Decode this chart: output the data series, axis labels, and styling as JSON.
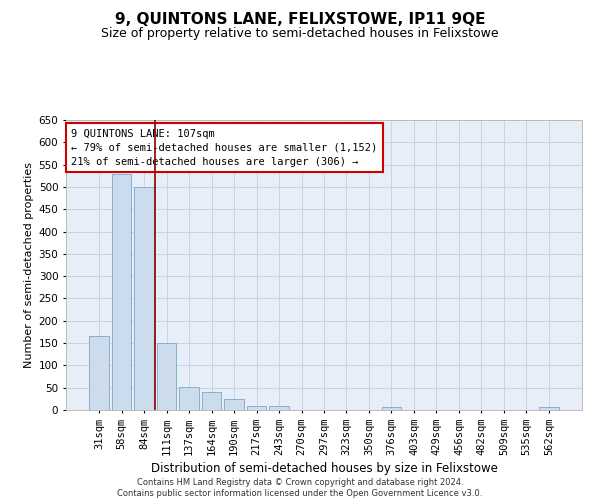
{
  "title": "9, QUINTONS LANE, FELIXSTOWE, IP11 9QE",
  "subtitle": "Size of property relative to semi-detached houses in Felixstowe",
  "xlabel": "Distribution of semi-detached houses by size in Felixstowe",
  "ylabel": "Number of semi-detached properties",
  "categories": [
    "31sqm",
    "58sqm",
    "84sqm",
    "111sqm",
    "137sqm",
    "164sqm",
    "190sqm",
    "217sqm",
    "243sqm",
    "270sqm",
    "297sqm",
    "323sqm",
    "350sqm",
    "376sqm",
    "403sqm",
    "429sqm",
    "456sqm",
    "482sqm",
    "509sqm",
    "535sqm",
    "562sqm"
  ],
  "values": [
    165,
    530,
    500,
    150,
    52,
    40,
    25,
    10,
    10,
    0,
    0,
    0,
    0,
    7,
    0,
    0,
    0,
    0,
    0,
    0,
    7
  ],
  "bar_color": "#ccdcec",
  "bar_edge_color": "#88aed0",
  "vline_color": "#880000",
  "grid_color": "#c8d4e4",
  "background_color": "#e8eef8",
  "ylim": [
    0,
    650
  ],
  "yticks": [
    0,
    50,
    100,
    150,
    200,
    250,
    300,
    350,
    400,
    450,
    500,
    550,
    600,
    650
  ],
  "annotation_text": "9 QUINTONS LANE: 107sqm\n← 79% of semi-detached houses are smaller (1,152)\n21% of semi-detached houses are larger (306) →",
  "annotation_box_color": "#ffffff",
  "annotation_box_edge": "#cc0000",
  "footer": "Contains HM Land Registry data © Crown copyright and database right 2024.\nContains public sector information licensed under the Open Government Licence v3.0.",
  "title_fontsize": 11,
  "subtitle_fontsize": 9,
  "xlabel_fontsize": 8.5,
  "ylabel_fontsize": 8,
  "tick_fontsize": 7.5,
  "annotation_fontsize": 7.5,
  "footer_fontsize": 6,
  "vline_pos": 2.48
}
